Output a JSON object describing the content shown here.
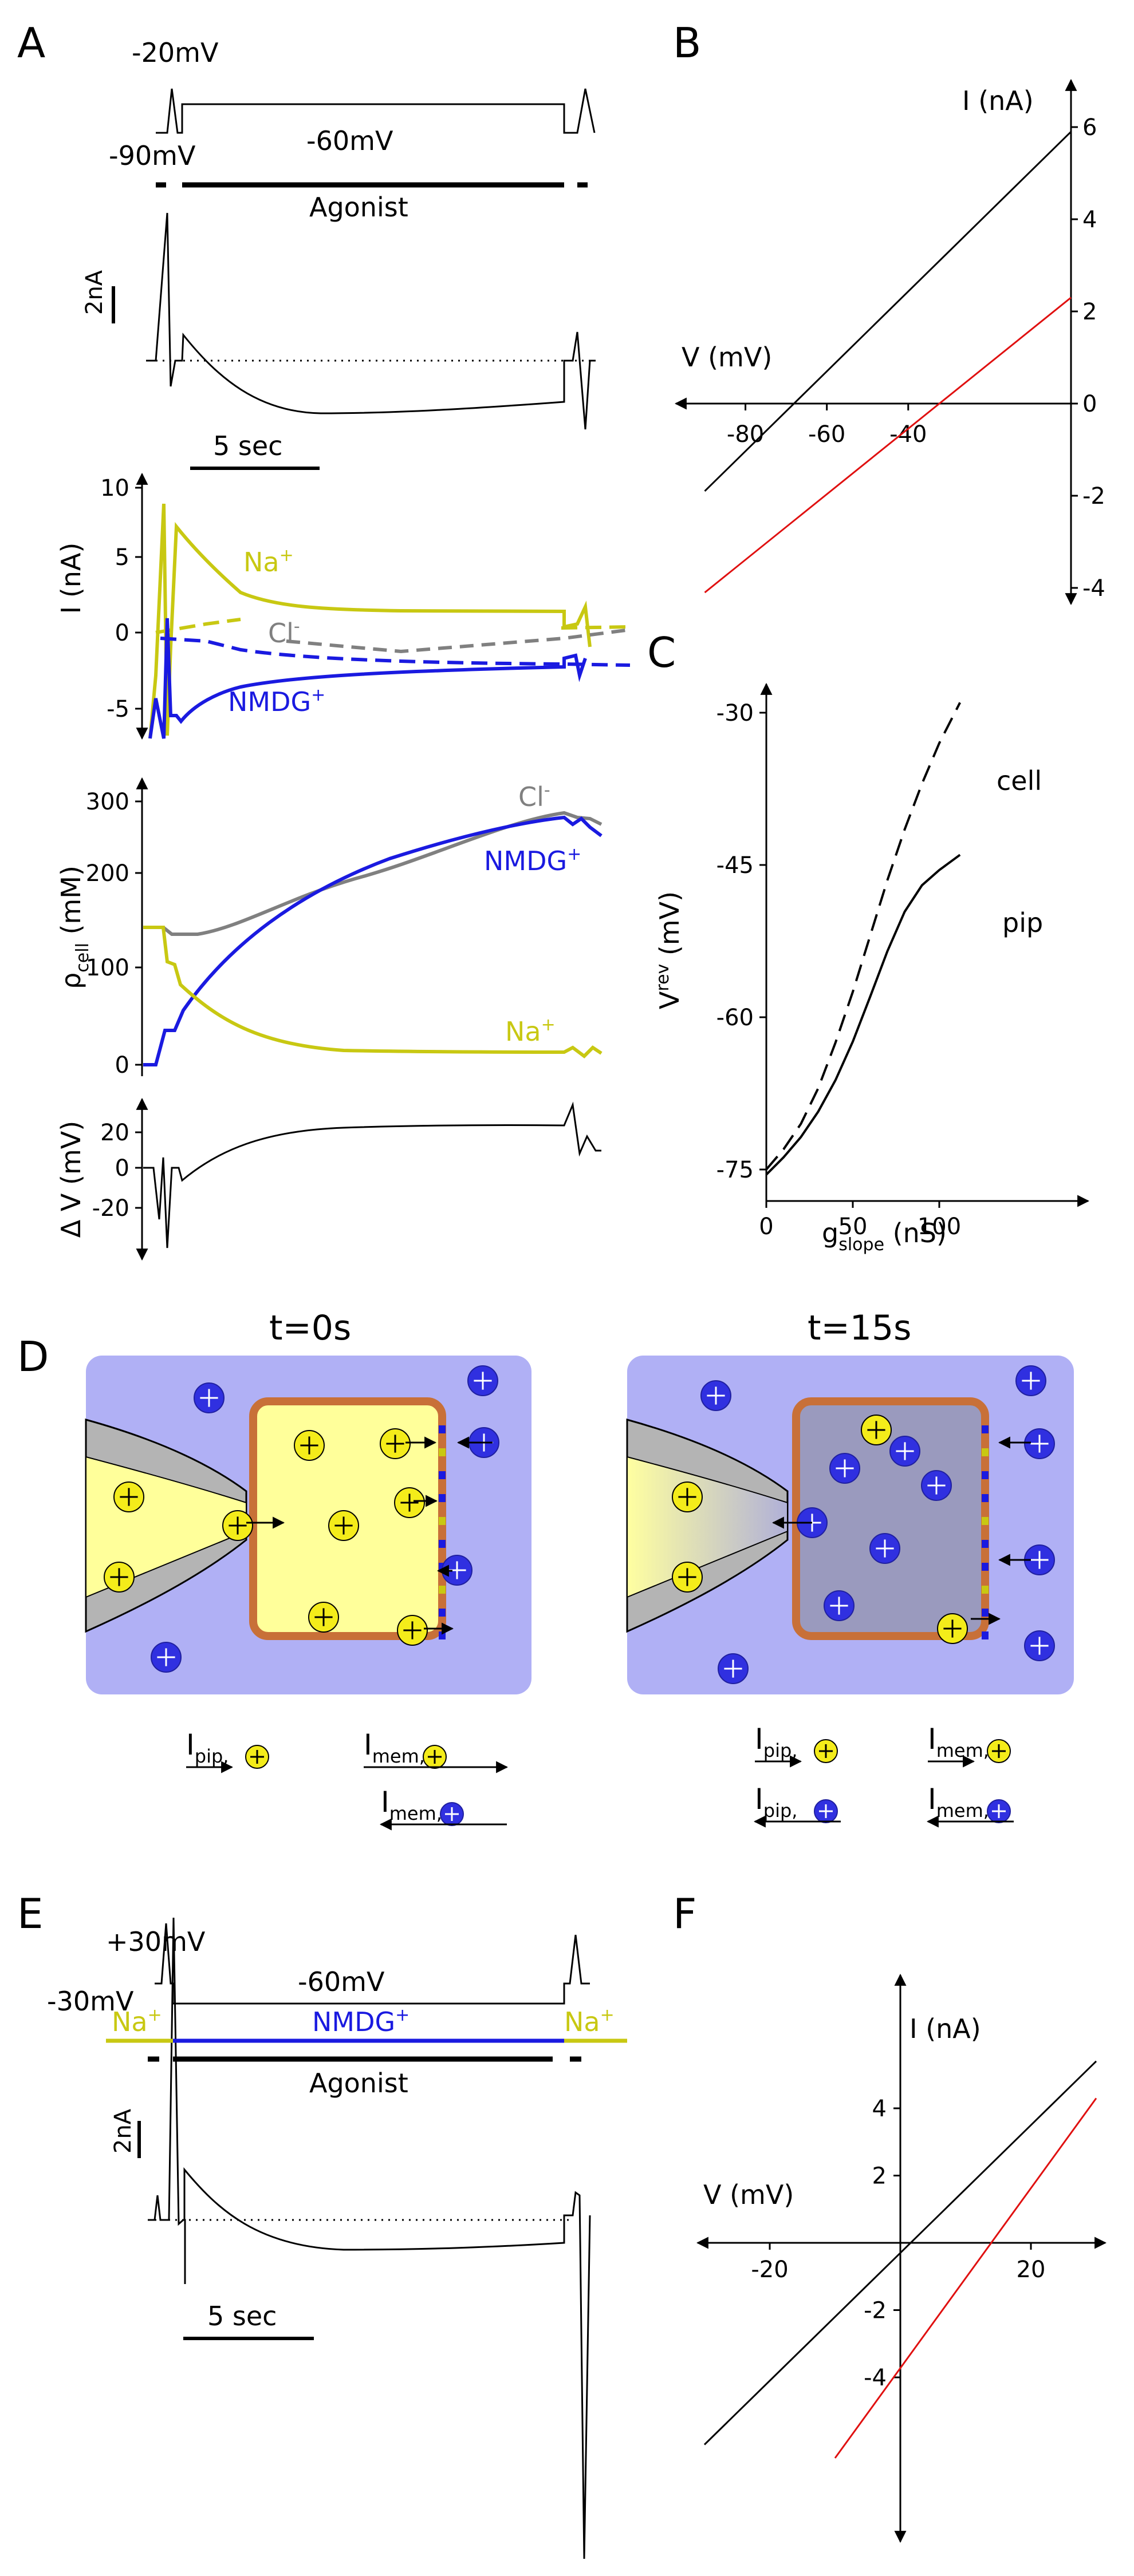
{
  "panels": {
    "A": {
      "label": "A",
      "protocol": {
        "v_test": "-20mV",
        "v_hold": "-60mV",
        "v_rest": "-90mV",
        "agonist": "Agonist"
      },
      "scalebar": {
        "current": "2nA",
        "time": "5 sec"
      },
      "currents": {
        "ylabel": "I (nA)",
        "yticks": [
          "10",
          "5",
          "0",
          "-5"
        ],
        "na_label": "Na",
        "na_sup": "+",
        "cl_label": "Cl",
        "cl_sup": "-",
        "nmdg_label": "NMDG",
        "nmdg_sup": "+"
      },
      "conc": {
        "ylabel_rho": "ρ",
        "ylabel_sub": "cell",
        "ylabel_unit": " (mM)",
        "yticks": [
          "300",
          "200",
          "100",
          "0"
        ],
        "cl_label": "Cl",
        "cl_sup": "-",
        "nmdg_label": "NMDG",
        "nmdg_sup": "+",
        "na_label": "Na",
        "na_sup": "+"
      },
      "dv": {
        "ylabel": "Δ V (mV)",
        "yticks": [
          "20",
          "0",
          "-20"
        ]
      }
    },
    "B": {
      "label": "B",
      "ylabel": "I (nA)",
      "xlabel": "V (mV)",
      "yticks": [
        "6",
        "4",
        "2",
        "0",
        "-2",
        "-4"
      ],
      "xticks": [
        "-80",
        "-60",
        "-40"
      ]
    },
    "C": {
      "label": "C",
      "ylabel_main": "V",
      "ylabel_sup": "rev",
      "ylabel_unit": " (mV)",
      "xlabel_main": "g",
      "xlabel_sub": "slope",
      "xlabel_unit": "  (nS)",
      "yticks": [
        "-30",
        "-45",
        "-60",
        "-75"
      ],
      "xticks": [
        "0",
        "50",
        "100"
      ],
      "cell_label": "cell",
      "pip_label": "pip"
    },
    "D": {
      "label": "D",
      "left_title": "t=0s",
      "right_title": "t=15s",
      "i_pip": "I",
      "i_pip_sub": "pip,",
      "i_mem": "I",
      "i_mem_sub": "mem,"
    },
    "E": {
      "label": "E",
      "protocol": {
        "v_test": "+30mV",
        "v_rest": "-30mV",
        "v_hold": "-60mV",
        "agonist": "Agonist"
      },
      "solution": {
        "na_left": "Na",
        "na_sup": "+",
        "nmdg": "NMDG",
        "nmdg_sup": "+",
        "na_right": "Na"
      },
      "scalebar": {
        "current": "2nA",
        "time": "5 sec"
      }
    },
    "F": {
      "label": "F",
      "ylabel": "I (nA)",
      "xlabel": "V (mV)",
      "yticks": [
        "4",
        "2",
        "-2",
        "-4"
      ],
      "xticks": [
        "-20",
        "20"
      ]
    }
  },
  "colors": {
    "na": "#c8c812",
    "nmdg": "#1a1ae0",
    "cl": "#808080",
    "red": "#e01010",
    "bath": "#b0b0f5",
    "pip_yellow": "#ffff9a",
    "cell_dark": "#9a9abe",
    "membrane": "#c87038"
  },
  "chart_data": [
    {
      "type": "line",
      "panel": "B",
      "xlabel": "V (mV)",
      "ylabel": "I (nA)",
      "xlim": [
        -95,
        0
      ],
      "ylim": [
        -4,
        6
      ],
      "series": [
        {
          "color": "black",
          "x": [
            -90,
            0
          ],
          "y": [
            -1.9,
            5.9
          ]
        },
        {
          "color": "red",
          "x": [
            -90,
            0
          ],
          "y": [
            -4.1,
            2.3
          ]
        }
      ]
    },
    {
      "type": "line",
      "panel": "C",
      "xlabel": "gslope (nS)",
      "ylabel": "Vrev (mV)",
      "xlim": [
        0,
        115
      ],
      "ylim": [
        -77,
        -28
      ],
      "series": [
        {
          "name": "cell",
          "style": "dashed",
          "x": [
            0,
            10,
            20,
            30,
            40,
            50,
            60,
            70,
            80,
            90,
            100,
            112
          ],
          "y": [
            -75,
            -73,
            -70.5,
            -67,
            -62.5,
            -57.5,
            -52,
            -46.5,
            -41.5,
            -37,
            -33,
            -29
          ]
        },
        {
          "name": "pip",
          "style": "solid",
          "x": [
            0,
            10,
            20,
            30,
            40,
            50,
            60,
            70,
            80,
            90,
            100,
            112
          ],
          "y": [
            -75.5,
            -73.8,
            -71.8,
            -69.3,
            -66.2,
            -62.4,
            -58,
            -53.5,
            -49.6,
            -47,
            -45.5,
            -44
          ]
        }
      ]
    },
    {
      "type": "line",
      "panel": "F",
      "xlabel": "V (mV)",
      "ylabel": "I (nA)",
      "xlim": [
        -30,
        30
      ],
      "ylim": [
        -6.5,
        6
      ],
      "series": [
        {
          "color": "black",
          "x": [
            -30,
            30
          ],
          "y": [
            -6,
            5.4
          ]
        },
        {
          "color": "red",
          "x": [
            -10,
            30
          ],
          "y": [
            -6.4,
            4.3
          ]
        }
      ]
    }
  ]
}
